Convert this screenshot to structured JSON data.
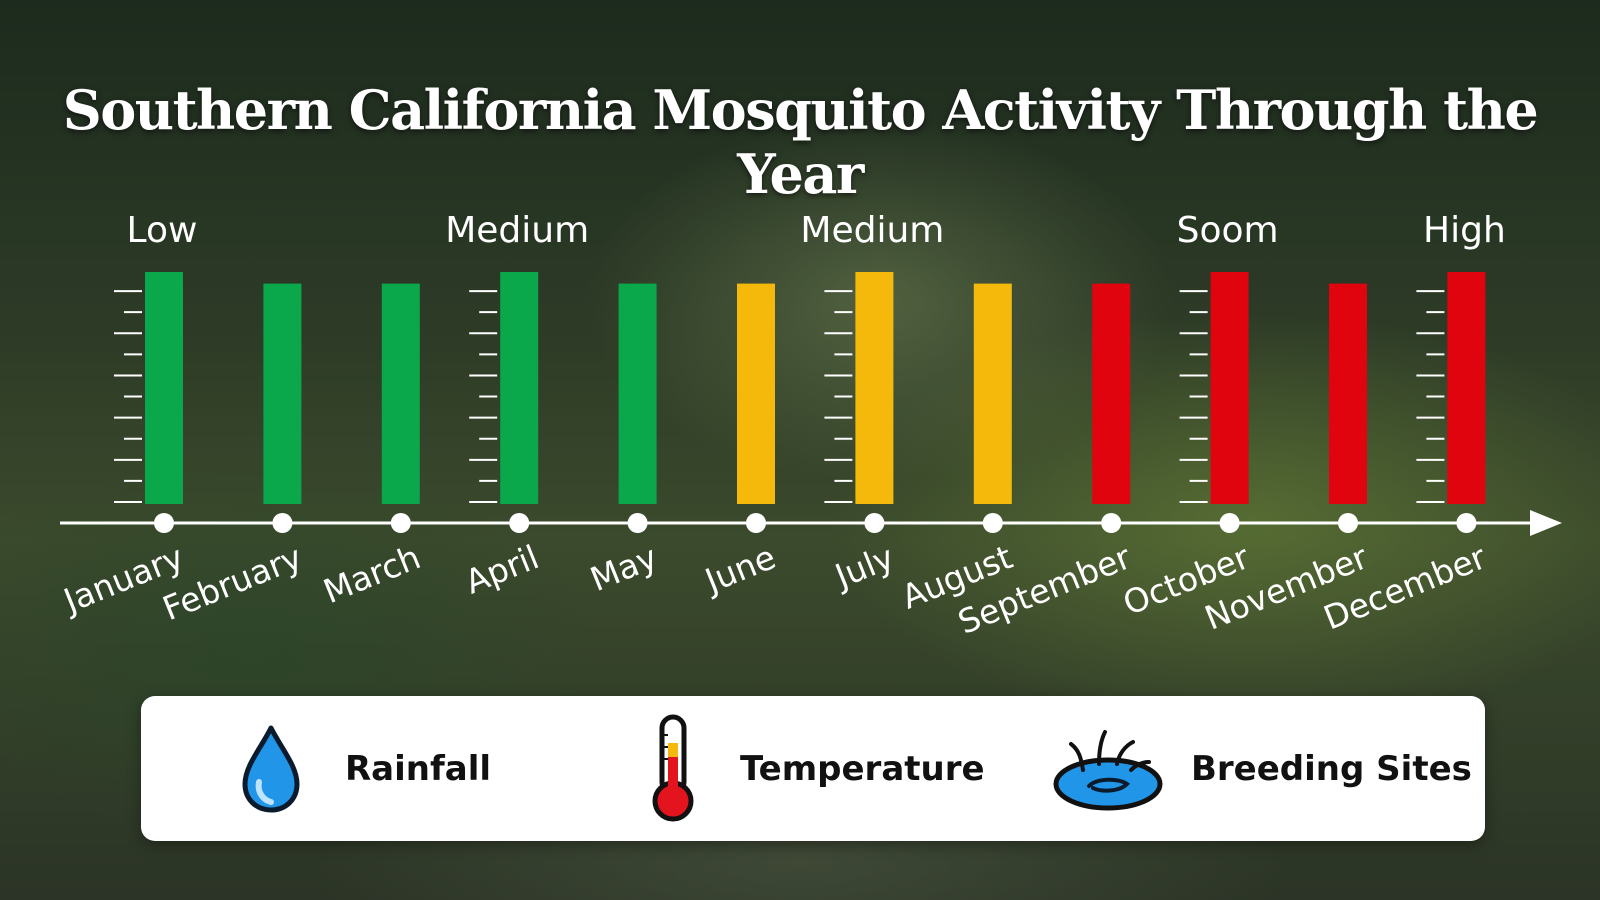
{
  "title": "Southern California Mosquito Activity Through the Year",
  "chart_data": {
    "type": "bar",
    "categories": [
      "January",
      "February",
      "March",
      "April",
      "May",
      "June",
      "July",
      "August",
      "September",
      "October",
      "November",
      "December"
    ],
    "values": [
      1.0,
      0.95,
      0.95,
      1.0,
      0.95,
      0.95,
      1.0,
      0.95,
      0.95,
      1.0,
      0.95,
      1.0
    ],
    "bar_colors": [
      "#0aa84a",
      "#0aa84a",
      "#0aa84a",
      "#0aa84a",
      "#0aa84a",
      "#f5b90c",
      "#f5b90c",
      "#f5b90c",
      "#e0040e",
      "#e0040e",
      "#e0040e",
      "#e0040e"
    ],
    "level_labels": [
      {
        "month": "January",
        "label": "Low"
      },
      {
        "month": "April",
        "label": "Medium"
      },
      {
        "month": "July",
        "label": "Medium"
      },
      {
        "month": "October",
        "label": "Soom"
      },
      {
        "month": "December",
        "label": "High"
      }
    ],
    "ylim": [
      0,
      1
    ],
    "grid": false
  },
  "legend": {
    "items": [
      {
        "label": "Rainfall",
        "icon": "water-drop-icon"
      },
      {
        "label": "Temperature",
        "icon": "thermometer-icon"
      },
      {
        "label": "Breeding Sites",
        "icon": "puddle-icon"
      }
    ]
  },
  "colors": {
    "low": "#0aa84a",
    "medium": "#f5b90c",
    "high": "#e0040e",
    "axis": "#ffffff"
  }
}
